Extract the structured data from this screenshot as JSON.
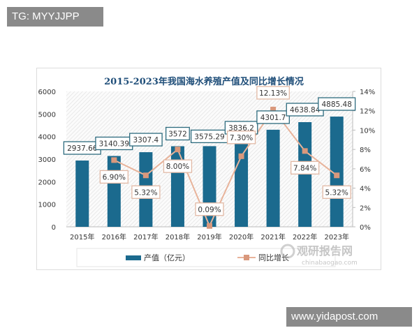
{
  "watermark_top": "TG: MYYJJPP",
  "watermark_bottom": "www.yidapost.com",
  "source_logo": {
    "name": "观研报告网",
    "url_text": "chinabaogao.com"
  },
  "colors": {
    "bar": "#1b6a8e",
    "line": "#e8b39a",
    "marker": "#d9987c",
    "title": "#1f4e79",
    "bar_label_border": "#2d6b7e",
    "pct_label_border": "#e2b9a5"
  },
  "chart_data": {
    "type": "bar+line",
    "title": "2015-2023年我国海水养殖产值及同比增长情况",
    "categories": [
      "2015年",
      "2016年",
      "2017年",
      "2018年",
      "2019年",
      "2020年",
      "2021年",
      "2022年",
      "2023年"
    ],
    "series": [
      {
        "name": "产值（亿元）",
        "type": "bar",
        "axis": "left",
        "values": [
          2937.66,
          3140.39,
          3307.4,
          3572,
          3575.29,
          3836.2,
          4301.7,
          4638.84,
          4885.48
        ],
        "labels": [
          "2937.66",
          "3140.39",
          "3307.4",
          "3572",
          "3575.29",
          "3836.2",
          "4301.7",
          "4638.84",
          "4885.48"
        ]
      },
      {
        "name": "同比增长",
        "type": "line",
        "axis": "right",
        "values": [
          null,
          6.9,
          5.32,
          8.0,
          0.09,
          7.3,
          12.13,
          7.84,
          5.32
        ],
        "labels": [
          "",
          "6.90%",
          "5.32%",
          "8.00%",
          "0.09%",
          "7.30%",
          "12.13%",
          "7.84%",
          "5.32%"
        ]
      }
    ],
    "y_left": {
      "range": [
        0,
        6000
      ],
      "ticks": [
        "0",
        "1000",
        "2000",
        "3000",
        "4000",
        "5000",
        "6000"
      ]
    },
    "y_right": {
      "range": [
        0,
        14
      ],
      "ticks": [
        "0%",
        "2%",
        "4%",
        "6%",
        "8%",
        "10%",
        "12%",
        "14%"
      ]
    },
    "grid": false,
    "legend": "bottom"
  }
}
